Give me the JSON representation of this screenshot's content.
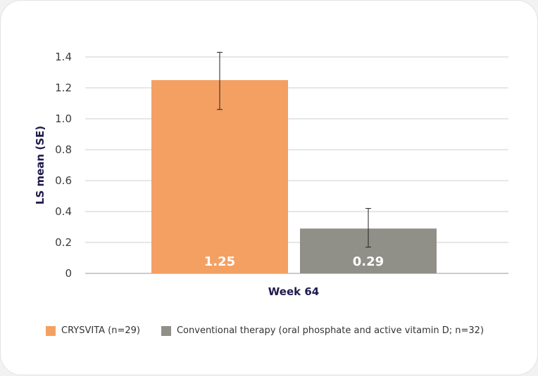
{
  "chart_data": {
    "type": "bar",
    "categories": [
      "Week 64"
    ],
    "series": [
      {
        "name": "CRYSVITA (n=29)",
        "values": [
          1.25
        ],
        "error_upper": [
          1.43
        ],
        "error_lower": [
          1.06
        ],
        "color": "#f4a062",
        "data_label": "1.25"
      },
      {
        "name": "Conventional therapy (oral phosphate and active vitamin D; n=32)",
        "values": [
          0.29
        ],
        "error_upper": [
          0.42
        ],
        "error_lower": [
          0.17
        ],
        "color": "#908f88",
        "data_label": "0.29"
      }
    ],
    "ylabel": "LS mean (SE)",
    "ylim": [
      0,
      1.4
    ],
    "yticks": [
      "0",
      "0.2",
      "0.4",
      "0.6",
      "0.8",
      "1.0",
      "1.2",
      "1.4"
    ],
    "grid": true,
    "legend_position": "bottom-left"
  }
}
